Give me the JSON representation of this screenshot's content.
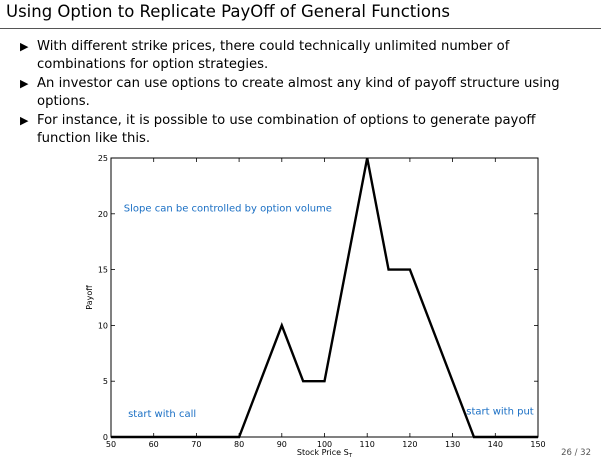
{
  "slide": {
    "title": "Using Option to Replicate PayOff of General Functions",
    "bullets": [
      "With different strike prices, there could technically unlimited number of combinations for option strategies.",
      "An investor can use options to create almost any kind of payoff structure using options.",
      "For instance, it is possible to use combination of options to generate payoff function like this."
    ],
    "bullet_marker": "▶",
    "page_number": "26 / 32"
  },
  "chart_data": {
    "type": "line",
    "xlabel": "Stock Price S",
    "xlabel_subscript": "T",
    "ylabel": "Payoff",
    "xlim": [
      50,
      150
    ],
    "ylim": [
      0,
      25
    ],
    "xticks": [
      50,
      60,
      70,
      80,
      90,
      100,
      110,
      120,
      130,
      140,
      150
    ],
    "yticks": [
      0,
      5,
      10,
      15,
      20,
      25
    ],
    "grid": false,
    "series": [
      {
        "x": [
          50,
          80,
          90,
          95,
          100,
          110,
          115,
          120,
          135,
          150
        ],
        "y": [
          0,
          0,
          10,
          5,
          5,
          25,
          15,
          15,
          0,
          0
        ],
        "color": "#000000"
      }
    ],
    "annotations": [
      {
        "text": "Slope can be controlled by option volume",
        "x": 53,
        "y": 20.2,
        "color": "#1a6fc4"
      },
      {
        "text": "start with call",
        "x": 54,
        "y": 1.8,
        "color": "#1a6fc4"
      },
      {
        "text": "start with put",
        "x": 133.2,
        "y": 2.0,
        "color": "#1a6fc4"
      }
    ]
  }
}
